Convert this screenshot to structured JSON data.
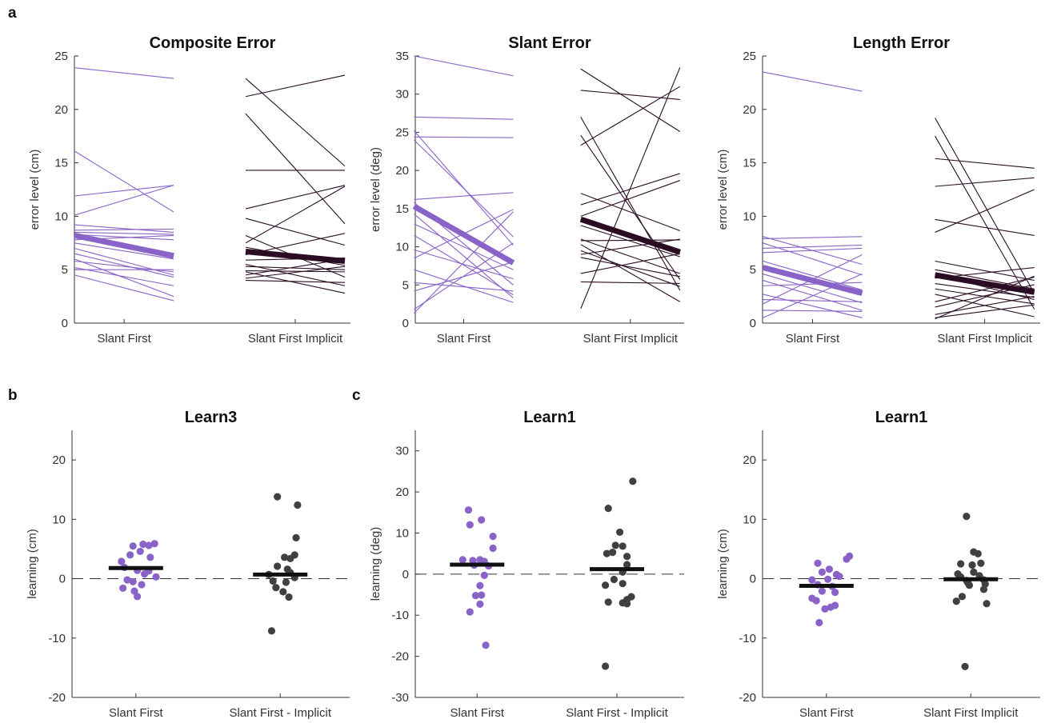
{
  "panel_letters": [
    "a",
    "b",
    "c"
  ],
  "colors": {
    "group1": "#8a63c8",
    "group1_mean": "#8a63c8",
    "group2": "#2a0d22",
    "group2_points": "#404040",
    "mean_bar": "#111111"
  },
  "chart_data": [
    {
      "type": "line",
      "title": "Composite Error",
      "ylabel": "error level (cm)",
      "categories": [
        "Slant First",
        "Slant First Implicit"
      ],
      "ylim": [
        0,
        25
      ],
      "yticks": [
        0,
        5,
        10,
        15,
        20,
        25
      ],
      "series": [
        {
          "group": 0,
          "color": "#8a63c8",
          "mean": [
            8.2,
            6.3
          ],
          "pairs": [
            [
              23.9,
              22.9
            ],
            [
              16.1,
              10.4
            ],
            [
              11.9,
              12.9
            ],
            [
              10.1,
              12.9
            ],
            [
              9.2,
              8.5
            ],
            [
              8.7,
              8.8
            ],
            [
              8.5,
              8.3
            ],
            [
              8.3,
              7.8
            ],
            [
              7.8,
              8.2
            ],
            [
              7.5,
              6.0
            ],
            [
              7.0,
              4.5
            ],
            [
              6.5,
              4.3
            ],
            [
              6.0,
              2.5
            ],
            [
              5.8,
              4.8
            ],
            [
              5.2,
              3.5
            ],
            [
              5.0,
              5.0
            ],
            [
              4.5,
              2.1
            ]
          ]
        },
        {
          "group": 1,
          "color": "#2a0d22",
          "mean": [
            6.7,
            5.8
          ],
          "pairs": [
            [
              22.9,
              14.7
            ],
            [
              21.2,
              23.2
            ],
            [
              19.6,
              9.3
            ],
            [
              14.3,
              14.3
            ],
            [
              10.7,
              12.9
            ],
            [
              9.8,
              7.3
            ],
            [
              8.2,
              4.3
            ],
            [
              7.5,
              12.8
            ],
            [
              7.1,
              5.4
            ],
            [
              6.4,
              8.4
            ],
            [
              5.9,
              6.1
            ],
            [
              5.5,
              3.5
            ],
            [
              5.3,
              5.0
            ],
            [
              4.9,
              4.8
            ],
            [
              4.8,
              2.8
            ],
            [
              4.5,
              6.0
            ],
            [
              4.2,
              5.3
            ],
            [
              4.0,
              3.8
            ]
          ]
        }
      ]
    },
    {
      "type": "line",
      "title": "Slant Error",
      "ylabel": "error level (deg)",
      "categories": [
        "Slant First",
        "Slant First Implicit"
      ],
      "ylim": [
        0,
        35
      ],
      "yticks": [
        0,
        5,
        10,
        15,
        20,
        25,
        30,
        35
      ],
      "series": [
        {
          "group": 0,
          "color": "#8a63c8",
          "mean": [
            15.3,
            7.9
          ],
          "pairs": [
            [
              35.0,
              32.4
            ],
            [
              27.0,
              26.7
            ],
            [
              25.2,
              10.2
            ],
            [
              24.4,
              24.3
            ],
            [
              24.0,
              11.3
            ],
            [
              16.2,
              17.1
            ],
            [
              15.8,
              5.0
            ],
            [
              14.3,
              3.3
            ],
            [
              13.0,
              7.0
            ],
            [
              11.5,
              3.7
            ],
            [
              9.6,
              5.8
            ],
            [
              8.5,
              14.9
            ],
            [
              7.0,
              2.7
            ],
            [
              5.3,
              4.2
            ],
            [
              4.2,
              8.0
            ],
            [
              1.8,
              10.5
            ],
            [
              1.3,
              14.6
            ]
          ]
        },
        {
          "group": 1,
          "color": "#2a0d22",
          "mean": [
            13.6,
            9.3
          ],
          "pairs": [
            [
              33.3,
              25.1
            ],
            [
              30.5,
              29.3
            ],
            [
              27.0,
              4.3
            ],
            [
              24.6,
              5.7
            ],
            [
              23.3,
              31.0
            ],
            [
              17.0,
              12.1
            ],
            [
              15.5,
              19.6
            ],
            [
              14.0,
              18.7
            ],
            [
              12.8,
              8.7
            ],
            [
              11.0,
              6.5
            ],
            [
              10.8,
              10.9
            ],
            [
              10.3,
              2.8
            ],
            [
              9.5,
              4.8
            ],
            [
              9.0,
              11.0
            ],
            [
              8.6,
              6.1
            ],
            [
              6.5,
              9.1
            ],
            [
              5.4,
              5.2
            ],
            [
              1.9,
              33.5
            ]
          ]
        }
      ]
    },
    {
      "type": "line",
      "title": "Length Error",
      "ylabel": "error level (cm)",
      "categories": [
        "Slant First",
        "Slant First Implicit"
      ],
      "ylim": [
        0,
        25
      ],
      "yticks": [
        0,
        5,
        10,
        15,
        20,
        25
      ],
      "series": [
        {
          "group": 0,
          "color": "#8a63c8",
          "mean": [
            5.2,
            2.8
          ],
          "pairs": [
            [
              23.5,
              21.7
            ],
            [
              8.1,
              5.5
            ],
            [
              7.9,
              8.1
            ],
            [
              7.5,
              4.5
            ],
            [
              7.0,
              7.3
            ],
            [
              6.6,
              7.0
            ],
            [
              5.8,
              3.1
            ],
            [
              5.0,
              3.0
            ],
            [
              4.6,
              1.9
            ],
            [
              4.0,
              1.2
            ],
            [
              3.5,
              3.8
            ],
            [
              2.7,
              0.5
            ],
            [
              2.2,
              2.0
            ],
            [
              1.8,
              6.4
            ],
            [
              1.2,
              1.1
            ],
            [
              0.5,
              4.6
            ]
          ]
        },
        {
          "group": 1,
          "color": "#2a0d22",
          "mean": [
            4.5,
            2.9
          ],
          "pairs": [
            [
              19.2,
              2.8
            ],
            [
              17.5,
              1.3
            ],
            [
              15.4,
              14.5
            ],
            [
              12.8,
              13.6
            ],
            [
              9.7,
              8.2
            ],
            [
              8.5,
              12.5
            ],
            [
              5.8,
              4.0
            ],
            [
              5.0,
              3.2
            ],
            [
              4.6,
              2.2
            ],
            [
              4.2,
              5.2
            ],
            [
              3.7,
              2.4
            ],
            [
              3.2,
              1.8
            ],
            [
              2.7,
              0.6
            ],
            [
              2.0,
              4.3
            ],
            [
              1.5,
              3.6
            ],
            [
              0.8,
              2.5
            ],
            [
              0.5,
              1.7
            ],
            [
              0.4,
              4.4
            ]
          ]
        }
      ]
    },
    {
      "type": "scatter",
      "title": "Learn3",
      "ylabel": "learning (cm)",
      "categories": [
        "Slant First",
        "Slant First - Implicit"
      ],
      "ylim": [
        -20,
        25
      ],
      "yticks": [
        -20,
        -10,
        0,
        10,
        20
      ],
      "dashed_zero": true,
      "groups": [
        {
          "color": "#8a63c8",
          "mean": 1.8,
          "points": [
            [
              -1,
              2.9
            ],
            [
              -0.4,
              4.0
            ],
            [
              0.3,
              4.6
            ],
            [
              -0.2,
              5.5
            ],
            [
              0.5,
              5.8
            ],
            [
              1.3,
              5.9
            ],
            [
              0.9,
              5.6
            ],
            [
              1.0,
              3.6
            ],
            [
              -0.8,
              1.9
            ],
            [
              0.1,
              1.4
            ],
            [
              0.9,
              1.3
            ],
            [
              0.6,
              0.8
            ],
            [
              1.4,
              0.3
            ],
            [
              -0.6,
              -0.2
            ],
            [
              -0.2,
              -0.5
            ],
            [
              0.4,
              -1.0
            ],
            [
              -0.9,
              -1.6
            ],
            [
              -0.1,
              -2.1
            ],
            [
              0.1,
              -3.0
            ]
          ]
        },
        {
          "color": "#404040",
          "mean": 0.7,
          "points": [
            [
              -0.2,
              13.8
            ],
            [
              1.2,
              12.4
            ],
            [
              1.1,
              6.9
            ],
            [
              0.3,
              3.6
            ],
            [
              0.7,
              3.4
            ],
            [
              1.0,
              4.0
            ],
            [
              -0.2,
              2.1
            ],
            [
              0.5,
              1.6
            ],
            [
              0.7,
              1.0
            ],
            [
              -0.8,
              0.7
            ],
            [
              1.0,
              0.2
            ],
            [
              -0.5,
              -0.4
            ],
            [
              0.4,
              -0.6
            ],
            [
              -0.3,
              -1.5
            ],
            [
              0.2,
              -2.2
            ],
            [
              0.6,
              -3.1
            ],
            [
              -0.6,
              -8.8
            ]
          ]
        }
      ]
    },
    {
      "type": "scatter",
      "title": "Learn1",
      "ylabel": "learning (deg)",
      "categories": [
        "Slant First",
        "Slant First - Implicit"
      ],
      "ylim": [
        -30,
        35
      ],
      "yticks": [
        -30,
        -20,
        -10,
        0,
        10,
        20,
        30
      ],
      "dashed_zero": true,
      "groups": [
        {
          "color": "#8a63c8",
          "mean": 2.3,
          "points": [
            [
              -0.6,
              15.6
            ],
            [
              0.3,
              13.2
            ],
            [
              -0.5,
              12.0
            ],
            [
              1.1,
              9.2
            ],
            [
              1.1,
              6.3
            ],
            [
              -1.0,
              3.5
            ],
            [
              -0.3,
              3.3
            ],
            [
              0.2,
              3.5
            ],
            [
              0.5,
              3.1
            ],
            [
              -0.2,
              2.2
            ],
            [
              0.8,
              2.0
            ],
            [
              0.5,
              -0.3
            ],
            [
              0.2,
              -2.8
            ],
            [
              0.3,
              -5.1
            ],
            [
              -0.1,
              -5.2
            ],
            [
              0.2,
              -7.3
            ],
            [
              -0.5,
              -9.2
            ],
            [
              0.6,
              -17.3
            ]
          ]
        },
        {
          "color": "#404040",
          "mean": 1.2,
          "points": [
            [
              1.1,
              22.6
            ],
            [
              -0.6,
              16.0
            ],
            [
              0.2,
              10.2
            ],
            [
              -0.1,
              7.0
            ],
            [
              0.4,
              6.8
            ],
            [
              -0.3,
              5.3
            ],
            [
              -0.7,
              5.0
            ],
            [
              0.7,
              4.3
            ],
            [
              0.7,
              2.3
            ],
            [
              0.4,
              0.5
            ],
            [
              -0.2,
              -1.3
            ],
            [
              0.4,
              -2.3
            ],
            [
              -0.8,
              -2.7
            ],
            [
              1.0,
              -5.5
            ],
            [
              0.7,
              -6.2
            ],
            [
              -0.6,
              -6.8
            ],
            [
              0.4,
              -7.0
            ],
            [
              0.7,
              -7.2
            ],
            [
              -0.8,
              -22.4
            ]
          ]
        }
      ]
    },
    {
      "type": "scatter",
      "title": "Learn1",
      "ylabel": "learning (cm)",
      "categories": [
        "Slant First",
        "Slant First Implicit"
      ],
      "ylim": [
        -20,
        25
      ],
      "yticks": [
        -20,
        -10,
        0,
        10,
        20
      ],
      "dashed_zero": true,
      "groups": [
        {
          "color": "#8a63c8",
          "mean": -1.2,
          "points": [
            [
              -0.6,
              2.6
            ],
            [
              1.6,
              3.8
            ],
            [
              1.4,
              3.3
            ],
            [
              0.2,
              1.6
            ],
            [
              -0.3,
              1.1
            ],
            [
              0.7,
              0.7
            ],
            [
              0.9,
              0.4
            ],
            [
              -1.0,
              -0.2
            ],
            [
              0.1,
              -0.1
            ],
            [
              -0.6,
              -1.0
            ],
            [
              0.4,
              -1.3
            ],
            [
              -0.3,
              -2.1
            ],
            [
              0.6,
              -2.3
            ],
            [
              -1.0,
              -3.3
            ],
            [
              -0.7,
              -3.7
            ],
            [
              0.6,
              -4.5
            ],
            [
              0.3,
              -4.8
            ],
            [
              -0.1,
              -5.1
            ],
            [
              -0.5,
              -7.4
            ]
          ]
        },
        {
          "color": "#404040",
          "mean": -0.1,
          "points": [
            [
              -0.3,
              10.5
            ],
            [
              0.2,
              4.5
            ],
            [
              0.5,
              4.2
            ],
            [
              -0.7,
              2.5
            ],
            [
              0.1,
              2.3
            ],
            [
              0.7,
              2.6
            ],
            [
              -0.9,
              0.8
            ],
            [
              -0.7,
              0.3
            ],
            [
              0.2,
              1.1
            ],
            [
              -0.3,
              -0.3
            ],
            [
              0.9,
              -0.2
            ],
            [
              0.6,
              0.5
            ],
            [
              -0.2,
              -0.7
            ],
            [
              1.0,
              -0.9
            ],
            [
              -0.1,
              -1.1
            ],
            [
              0.9,
              -1.8
            ],
            [
              -0.6,
              -3.0
            ],
            [
              -1.0,
              -3.8
            ],
            [
              1.1,
              -4.2
            ],
            [
              -0.4,
              -14.8
            ]
          ]
        }
      ]
    }
  ]
}
